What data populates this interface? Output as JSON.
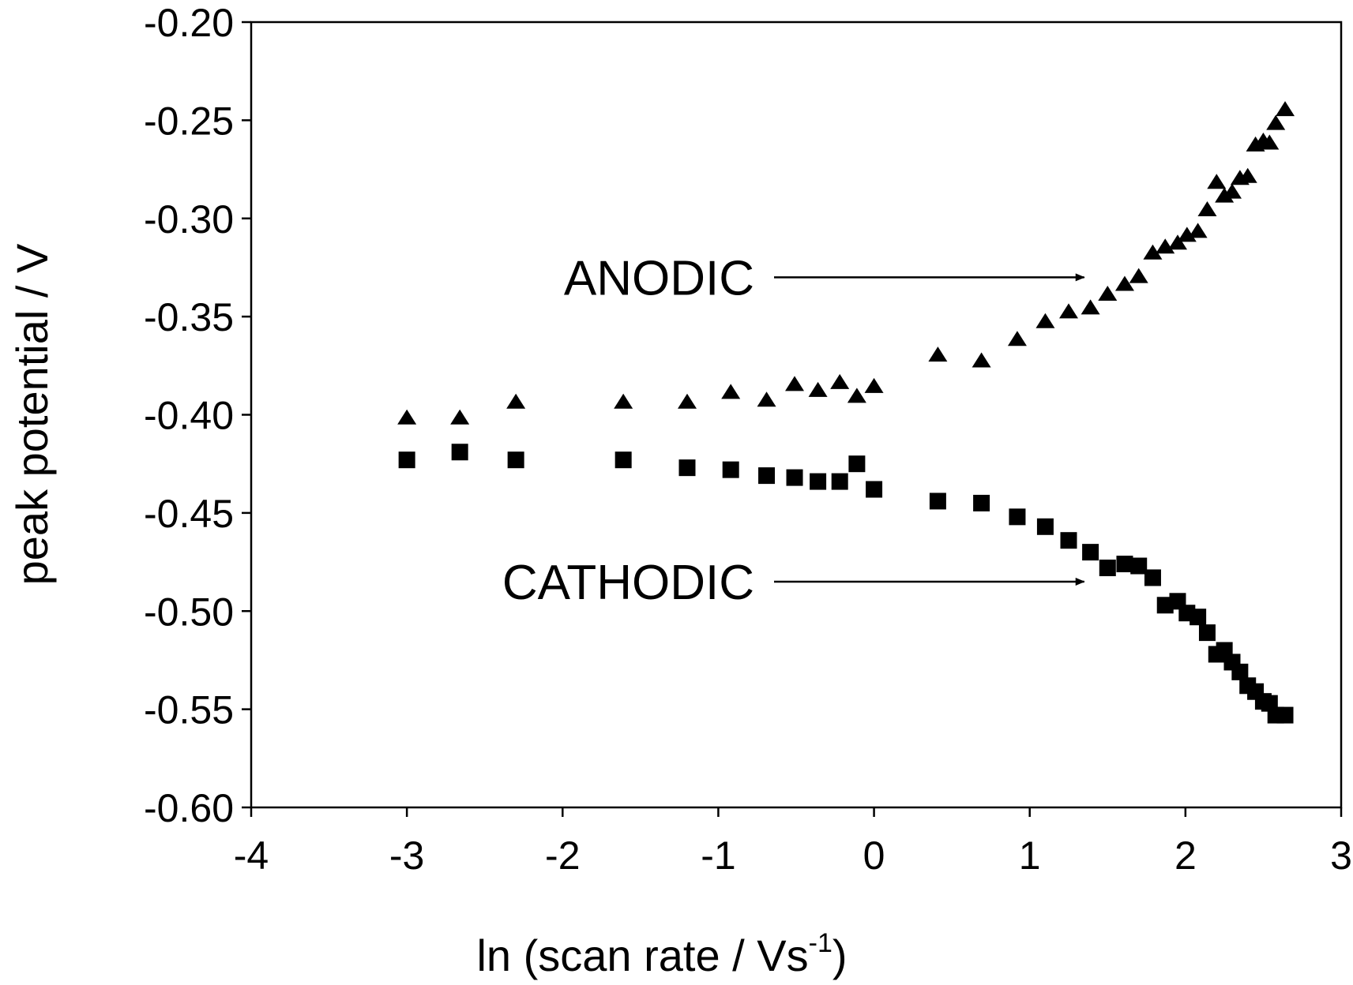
{
  "chart_data": {
    "type": "scatter",
    "title": "",
    "xlabel": "ln (scan rate / Vs",
    "xlabel_sup": "-1",
    "xlabel_close": ")",
    "ylabel": "peak potential / V",
    "xlim": [
      -4,
      3
    ],
    "ylim": [
      -0.6,
      -0.2
    ],
    "xticks": [
      "-4",
      "-3",
      "-2",
      "-1",
      "0",
      "1",
      "2",
      "3"
    ],
    "yticks": [
      "-0.20",
      "-0.25",
      "-0.30",
      "-0.35",
      "-0.40",
      "-0.45",
      "-0.50",
      "-0.55",
      "-0.60"
    ],
    "grid": false,
    "series": [
      {
        "name": "ANODIC",
        "marker": "triangle",
        "points": [
          [
            -3.0,
            -0.402
          ],
          [
            -2.66,
            -0.402
          ],
          [
            -2.3,
            -0.394
          ],
          [
            -1.61,
            -0.394
          ],
          [
            -1.2,
            -0.394
          ],
          [
            -0.92,
            -0.389
          ],
          [
            -0.69,
            -0.393
          ],
          [
            -0.51,
            -0.385
          ],
          [
            -0.36,
            -0.388
          ],
          [
            -0.22,
            -0.384
          ],
          [
            -0.11,
            -0.391
          ],
          [
            0.0,
            -0.386
          ],
          [
            0.41,
            -0.37
          ],
          [
            0.69,
            -0.373
          ],
          [
            0.92,
            -0.362
          ],
          [
            1.1,
            -0.353
          ],
          [
            1.25,
            -0.348
          ],
          [
            1.39,
            -0.346
          ],
          [
            1.5,
            -0.339
          ],
          [
            1.61,
            -0.334
          ],
          [
            1.7,
            -0.33
          ],
          [
            1.79,
            -0.318
          ],
          [
            1.87,
            -0.315
          ],
          [
            1.95,
            -0.313
          ],
          [
            2.01,
            -0.309
          ],
          [
            2.08,
            -0.307
          ],
          [
            2.14,
            -0.296
          ],
          [
            2.2,
            -0.282
          ],
          [
            2.25,
            -0.289
          ],
          [
            2.3,
            -0.287
          ],
          [
            2.35,
            -0.28
          ],
          [
            2.4,
            -0.279
          ],
          [
            2.45,
            -0.263
          ],
          [
            2.5,
            -0.261
          ],
          [
            2.54,
            -0.262
          ],
          [
            2.58,
            -0.252
          ],
          [
            2.64,
            -0.245
          ]
        ]
      },
      {
        "name": "CATHODIC",
        "marker": "square",
        "points": [
          [
            -3.0,
            -0.423
          ],
          [
            -2.66,
            -0.419
          ],
          [
            -2.3,
            -0.423
          ],
          [
            -1.61,
            -0.423
          ],
          [
            -1.2,
            -0.427
          ],
          [
            -0.92,
            -0.428
          ],
          [
            -0.69,
            -0.431
          ],
          [
            -0.51,
            -0.432
          ],
          [
            -0.36,
            -0.434
          ],
          [
            -0.22,
            -0.434
          ],
          [
            -0.11,
            -0.425
          ],
          [
            0.0,
            -0.438
          ],
          [
            0.41,
            -0.444
          ],
          [
            0.69,
            -0.445
          ],
          [
            0.92,
            -0.452
          ],
          [
            1.1,
            -0.457
          ],
          [
            1.25,
            -0.464
          ],
          [
            1.39,
            -0.47
          ],
          [
            1.5,
            -0.478
          ],
          [
            1.61,
            -0.476
          ],
          [
            1.7,
            -0.477
          ],
          [
            1.79,
            -0.483
          ],
          [
            1.87,
            -0.497
          ],
          [
            1.95,
            -0.495
          ],
          [
            2.01,
            -0.501
          ],
          [
            2.08,
            -0.503
          ],
          [
            2.14,
            -0.511
          ],
          [
            2.2,
            -0.522
          ],
          [
            2.25,
            -0.52
          ],
          [
            2.3,
            -0.526
          ],
          [
            2.35,
            -0.531
          ],
          [
            2.4,
            -0.538
          ],
          [
            2.45,
            -0.541
          ],
          [
            2.5,
            -0.546
          ],
          [
            2.54,
            -0.547
          ],
          [
            2.58,
            -0.553
          ],
          [
            2.64,
            -0.553
          ]
        ]
      }
    ],
    "annotations": [
      {
        "text": "ANODIC",
        "arrow_to": [
          1.35,
          -0.33
        ]
      },
      {
        "text": "CATHODIC",
        "arrow_to": [
          1.35,
          -0.485
        ]
      }
    ]
  }
}
